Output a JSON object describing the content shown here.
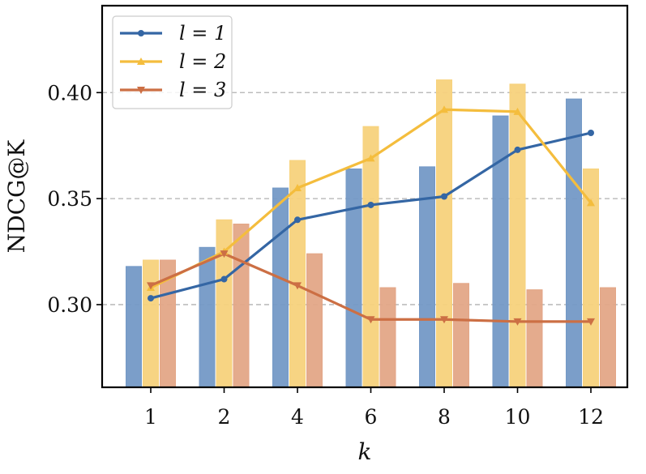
{
  "chart_data": {
    "type": "bar",
    "title": "",
    "xlabel": "k",
    "ylabel": "NDCG@K",
    "categories": [
      "1",
      "2",
      "4",
      "6",
      "8",
      "10",
      "12"
    ],
    "ylim": [
      0.261,
      0.441
    ],
    "yticks": [
      0.3,
      0.35,
      0.4
    ],
    "ytick_labels": [
      "0.30",
      "0.35",
      "0.40"
    ],
    "grid": "horizontal dashed at y ticks",
    "legend_position": "top-left",
    "bar_series": [
      {
        "name": "l = 1",
        "color": "#7499c6",
        "values": [
          0.318,
          0.327,
          0.355,
          0.364,
          0.365,
          0.389,
          0.397
        ]
      },
      {
        "name": "l = 2",
        "color": "#f7d27c",
        "values": [
          0.321,
          0.34,
          0.368,
          0.384,
          0.406,
          0.404,
          0.364
        ]
      },
      {
        "name": "l = 3",
        "color": "#e3a687",
        "values": [
          0.321,
          0.338,
          0.324,
          0.308,
          0.31,
          0.307,
          0.308
        ]
      }
    ],
    "line_series": [
      {
        "name": "l = 1",
        "color": "#3466a4",
        "marker": "circle",
        "values": [
          0.303,
          0.312,
          0.34,
          0.347,
          0.351,
          0.373,
          0.381
        ]
      },
      {
        "name": "l = 2",
        "color": "#f4bd3d",
        "marker": "triangle-up",
        "values": [
          0.308,
          0.325,
          0.355,
          0.369,
          0.392,
          0.391,
          0.348
        ]
      },
      {
        "name": "l = 3",
        "color": "#cc6f44",
        "marker": "triangle-down",
        "values": [
          0.309,
          0.324,
          0.309,
          0.293,
          0.293,
          0.292,
          0.292
        ]
      }
    ]
  }
}
